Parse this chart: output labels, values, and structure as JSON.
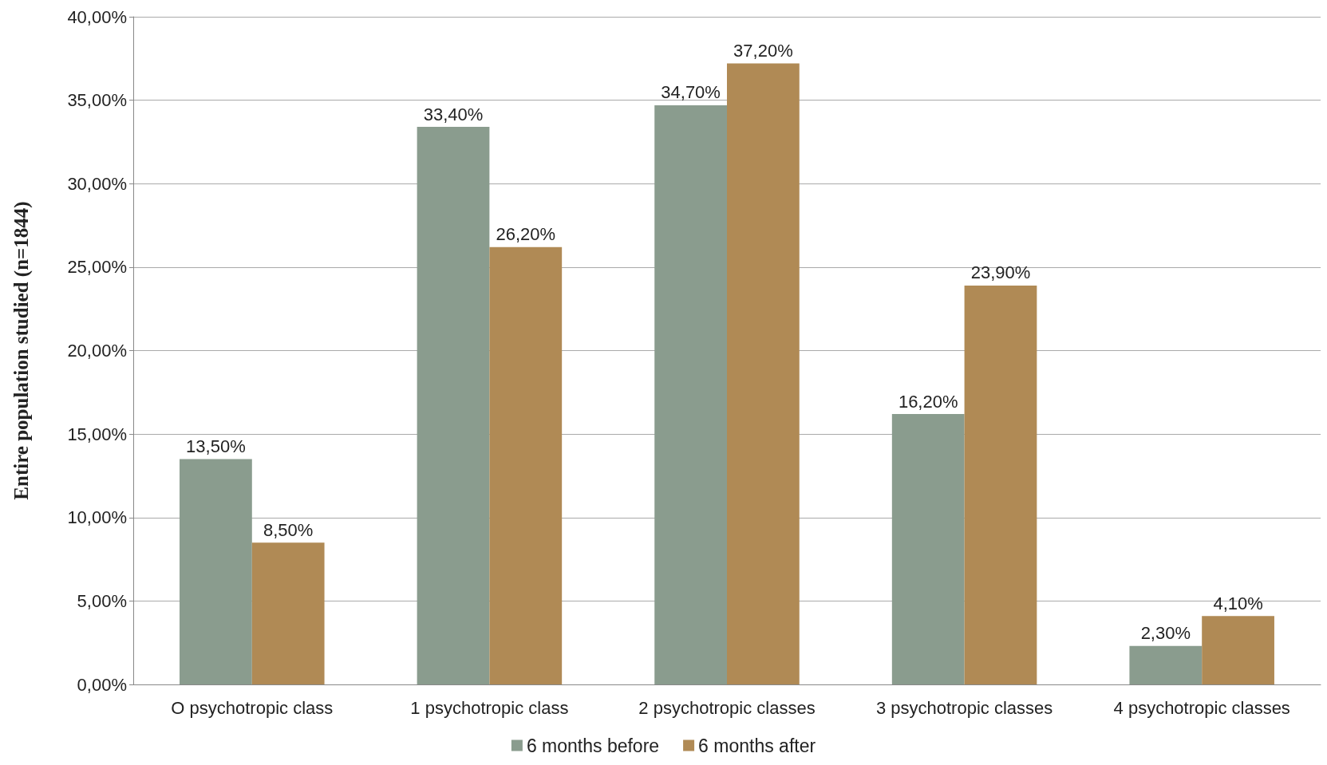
{
  "chart_data": {
    "type": "bar",
    "ylabel": "Entire population studied (n=1844)",
    "categories": [
      "O psychotropic class",
      "1 psychotropic class",
      "2 psychotropic classes",
      "3 psychotropic classes",
      "4 psychotropic classes"
    ],
    "series": [
      {
        "name": "6 months before",
        "color": "#8a9c8e",
        "values": [
          13.5,
          33.4,
          34.7,
          16.2,
          2.3
        ],
        "value_labels": [
          "13,50%",
          "33,40%",
          "34,70%",
          "16,20%",
          "2,30%"
        ]
      },
      {
        "name": "6 months after",
        "color": "#b08a55",
        "values": [
          8.5,
          26.2,
          37.2,
          23.9,
          4.1
        ],
        "value_labels": [
          "8,50%",
          "26,20%",
          "37,20%",
          "23,90%",
          "4,10%"
        ]
      }
    ],
    "ylim": [
      0,
      40
    ],
    "yticks": [
      {
        "value": 0,
        "label": "0,00%"
      },
      {
        "value": 5,
        "label": "5,00%"
      },
      {
        "value": 10,
        "label": "10,00%"
      },
      {
        "value": 15,
        "label": "15,00%"
      },
      {
        "value": 20,
        "label": "20,00%"
      },
      {
        "value": 25,
        "label": "25,00%"
      },
      {
        "value": 30,
        "label": "30,00%"
      },
      {
        "value": 35,
        "label": "35,00%"
      },
      {
        "value": 40,
        "label": "40,00%"
      }
    ],
    "grid": "y",
    "legend": "bottom"
  }
}
